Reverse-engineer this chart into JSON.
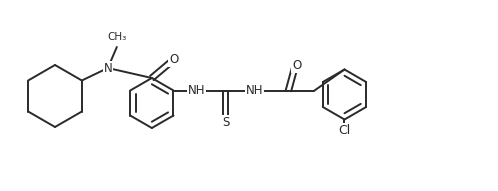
{
  "bg_color": "#ffffff",
  "line_color": "#2a2a2a",
  "line_width": 1.4,
  "font_size": 8.5,
  "figsize": [
    4.98,
    1.91
  ],
  "dpi": 100,
  "xlim": [
    0,
    9.96
  ],
  "ylim": [
    0,
    3.82
  ]
}
